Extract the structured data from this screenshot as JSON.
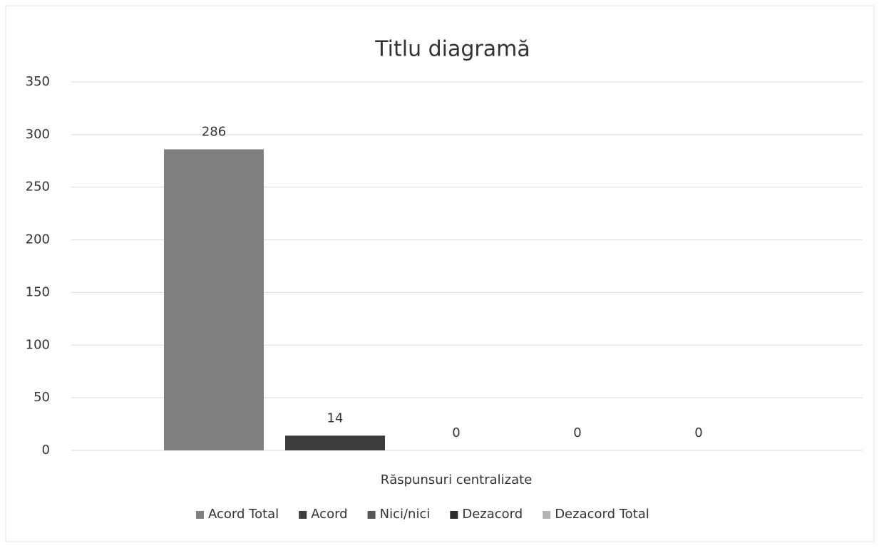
{
  "chart_data": {
    "type": "bar",
    "title": "Titlu diagramă",
    "categories": [
      "Răspunsuri centralizate"
    ],
    "series": [
      {
        "name": "Acord Total",
        "color": "#7f7f7f",
        "values": [
          286
        ]
      },
      {
        "name": "Acord",
        "color": "#3c3c3c",
        "values": [
          14
        ]
      },
      {
        "name": "Nici/nici",
        "color": "#555555",
        "values": [
          0
        ]
      },
      {
        "name": "Dezacord",
        "color": "#2b2b2b",
        "values": [
          0
        ]
      },
      {
        "name": "Dezacord Total",
        "color": "#b4b4b4",
        "values": [
          0
        ]
      }
    ],
    "ylim": [
      0,
      350
    ],
    "yticks": [
      0,
      50,
      100,
      150,
      200,
      250,
      300,
      350
    ],
    "grid": true,
    "legend": "bottom",
    "data_labels": true
  }
}
